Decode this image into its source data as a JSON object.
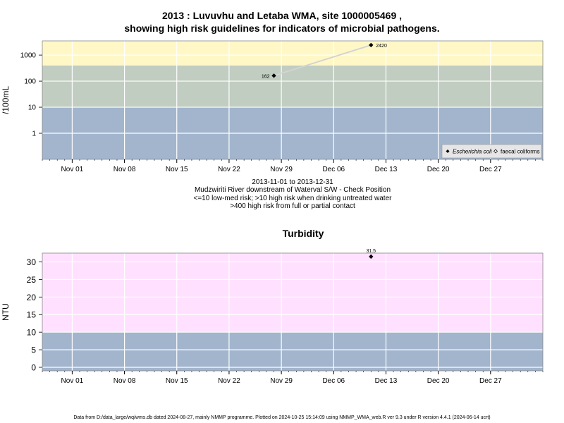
{
  "top_title_line1": "2013 : Luvuvhu and Letaba WMA, site 1000005469 ,",
  "top_title_line2": "showing high risk guidelines for indicators of microbial pathogens.",
  "subtitle_lines": [
    "2013-11-01 to 2013-12-31",
    "Mudzwiriti River downstream of Waterval S/W - Check Position",
    "<=10 low-med risk; >10 high risk when drinking untreated water",
    ">400 high risk from full or partial contact"
  ],
  "bottom_title": "Turbidity",
  "footer": "Data from D:/data_large/wq/wms.db dated 2024-08-27, mainly NMMP programme. Plotted on 2024-10-25 15:14:09 using NMMP_WMA_web.R ver 9.3 under R version 4.4.1 (2024-06-14 ucrt)",
  "colors": {
    "low": "#a2b5cd",
    "mid": "#c1cdc1",
    "high": "#fff8c6",
    "turb_high": "#ffe1ff",
    "line": "#d3d3d3",
    "point": "#000000"
  },
  "chart_data": [
    {
      "type": "scatter",
      "title": "",
      "ylabel": "/100mL",
      "y_scale": "log",
      "xlim": [
        "2013-10-28",
        "2014-01-03"
      ],
      "x_ticks": [
        "Nov 01",
        "Nov 08",
        "Nov 15",
        "Nov 22",
        "Nov 29",
        "Dec 06",
        "Dec 13",
        "Dec 20",
        "Dec 27"
      ],
      "x_tick_dates": [
        "2013-11-01",
        "2013-11-08",
        "2013-11-15",
        "2013-11-22",
        "2013-11-29",
        "2013-12-06",
        "2013-12-13",
        "2013-12-20",
        "2013-12-27"
      ],
      "y_ticks": [
        1,
        10,
        100,
        1000
      ],
      "ylim": [
        0.1,
        3500
      ],
      "bands": [
        {
          "from": 0.1,
          "to": 10,
          "color": "#a2b5cd"
        },
        {
          "from": 10,
          "to": 400,
          "color": "#c1cdc1"
        },
        {
          "from": 400,
          "to": 3500,
          "color": "#fff8c6"
        }
      ],
      "series": [
        {
          "name": "Escherichia coli",
          "points": [
            {
              "x": "2013-11-28",
              "y": 162,
              "label": "162"
            },
            {
              "x": "2013-12-11",
              "y": 2420,
              "label": "2420"
            }
          ]
        },
        {
          "name": "faecal coliforms",
          "points": []
        }
      ],
      "legend": [
        "Escherichia coli",
        "faecal coliforms"
      ],
      "legend_position": "bottom-right",
      "grid": true
    },
    {
      "type": "scatter",
      "title": "Turbidity",
      "ylabel": "NTU",
      "xlim": [
        "2013-10-28",
        "2014-01-03"
      ],
      "x_ticks": [
        "Nov 01",
        "Nov 08",
        "Nov 15",
        "Nov 22",
        "Nov 29",
        "Dec 06",
        "Dec 13",
        "Dec 20",
        "Dec 27"
      ],
      "x_tick_dates": [
        "2013-11-01",
        "2013-11-08",
        "2013-11-15",
        "2013-11-22",
        "2013-11-29",
        "2013-12-06",
        "2013-12-13",
        "2013-12-20",
        "2013-12-27"
      ],
      "y_ticks": [
        0,
        5,
        10,
        15,
        20,
        25,
        30
      ],
      "ylim": [
        -1,
        32.5
      ],
      "bands": [
        {
          "from": -1,
          "to": 10,
          "color": "#a2b5cd"
        },
        {
          "from": 10,
          "to": 32.5,
          "color": "#ffe1ff"
        }
      ],
      "series": [
        {
          "name": "Turbidity",
          "points": [
            {
              "x": "2013-12-11",
              "y": 31.5,
              "label": "31.5"
            }
          ]
        }
      ],
      "grid": true
    }
  ]
}
